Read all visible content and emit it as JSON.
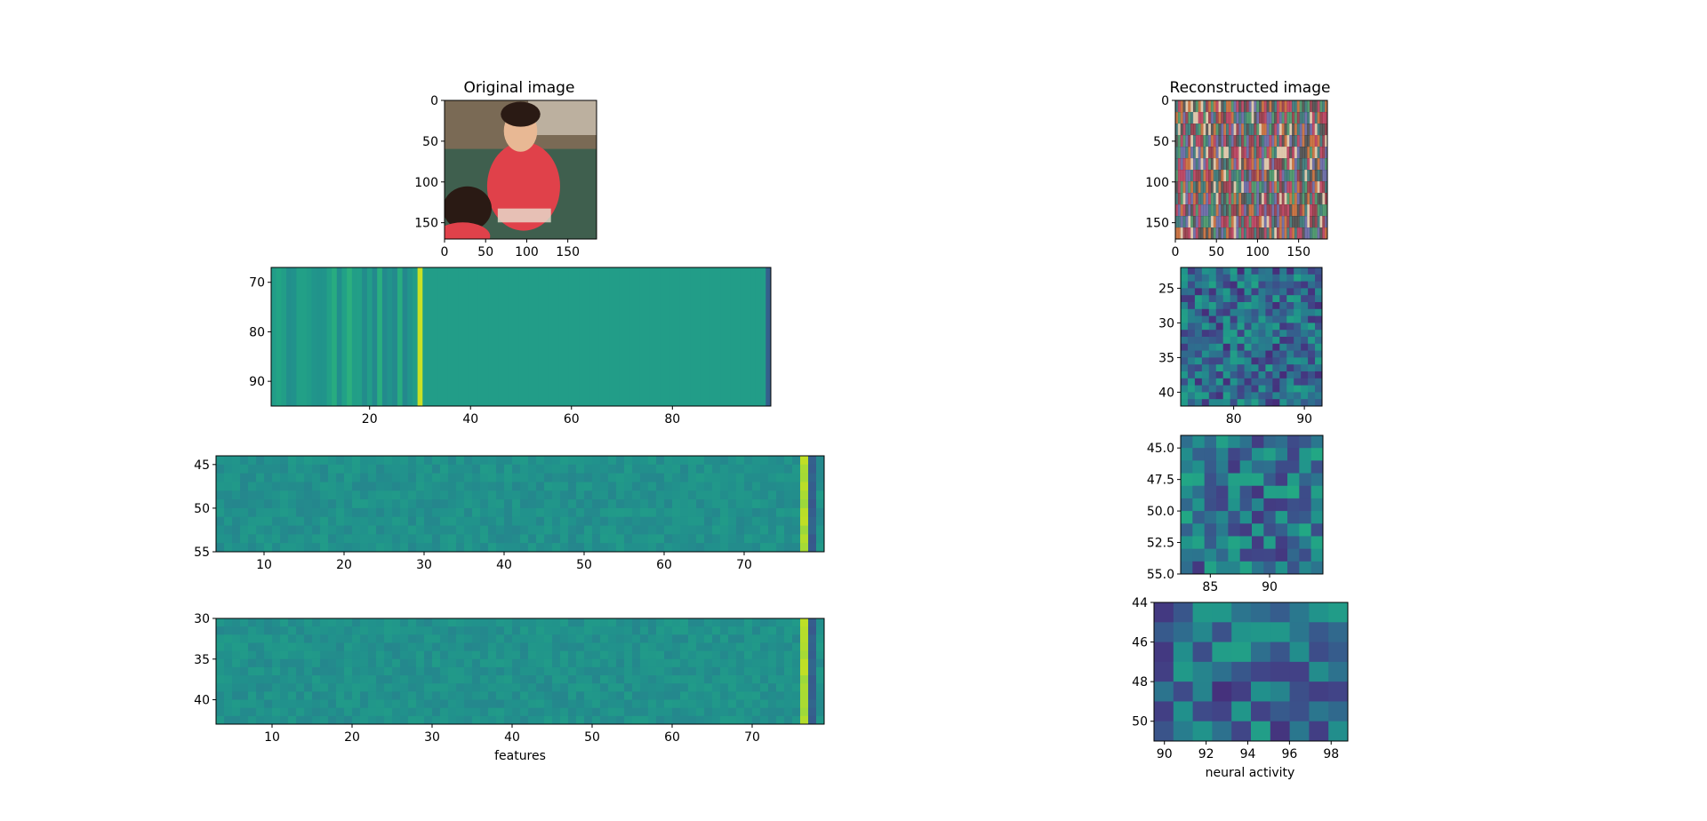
{
  "chart_data": [
    {
      "type": "image",
      "title": "Original image",
      "xlim": [
        0,
        185
      ],
      "ylim": [
        170,
        0
      ],
      "xticks": [
        0,
        50,
        100,
        150
      ],
      "yticks": [
        0,
        50,
        100,
        150
      ],
      "xticklabels": [
        "0",
        "50",
        "100",
        "150"
      ],
      "yticklabels": [
        "0",
        "50",
        "100",
        "150"
      ],
      "content": "photo",
      "palette": {
        "bg": "#7a6a55",
        "table": "#3f5f4e",
        "shirt": "#e0414a",
        "face": "#e8b894",
        "hair": "#2a1a14",
        "light": "#e8e0d0"
      }
    },
    {
      "type": "image",
      "title": "Reconstructed image",
      "xlim": [
        0,
        185
      ],
      "ylim": [
        170,
        0
      ],
      "xticks": [
        0,
        50,
        100,
        150
      ],
      "yticks": [
        0,
        50,
        100,
        150
      ],
      "xticklabels": [
        "0",
        "50",
        "100",
        "150"
      ],
      "yticklabels": [
        "0",
        "50",
        "100",
        "150"
      ],
      "content": "noise-stripes",
      "palette": {
        "stripes": [
          "#8a2a3a",
          "#3a8a5a",
          "#c0602a",
          "#5a5a9a",
          "#d8c0a0",
          "#2a6a6a",
          "#b03050",
          "#404040"
        ]
      }
    },
    {
      "type": "heatmap",
      "xlim": [
        0.5,
        99.5
      ],
      "ylim": [
        95,
        67
      ],
      "xticks": [
        20,
        40,
        60,
        80
      ],
      "yticks": [
        70,
        80,
        90
      ],
      "xticklabels": [
        "20",
        "40",
        "60",
        "80"
      ],
      "yticklabels": [
        "70",
        "80",
        "90"
      ],
      "cols": 99,
      "base": 0.55,
      "noise_end_col": 28,
      "special_cols": [
        {
          "col": 30,
          "value": 0.92
        },
        {
          "col": 99,
          "value": 0.3
        }
      ]
    },
    {
      "type": "heatmap",
      "xlim": [
        4,
        80
      ],
      "ylim": [
        55,
        44
      ],
      "xticks": [
        10,
        20,
        30,
        40,
        50,
        60,
        70
      ],
      "yticks": [
        45,
        50,
        55
      ],
      "xticklabels": [
        "10",
        "20",
        "30",
        "40",
        "50",
        "60",
        "70"
      ],
      "yticklabels": [
        "45",
        "50",
        "55"
      ],
      "cols": 76,
      "rows": 11,
      "base": 0.5,
      "special_cols": [
        {
          "col": 78,
          "value": 0.88
        },
        {
          "col": 79,
          "value": 0.3
        }
      ]
    },
    {
      "type": "heatmap",
      "xlim": [
        3,
        79
      ],
      "ylim": [
        43,
        30
      ],
      "xticks": [
        10,
        20,
        30,
        40,
        50,
        60,
        70
      ],
      "yticks": [
        30,
        35,
        40
      ],
      "xticklabels": [
        "10",
        "20",
        "30",
        "40",
        "50",
        "60",
        "70"
      ],
      "yticklabels": [
        "30",
        "35",
        "40"
      ],
      "xlabel": "features",
      "cols": 76,
      "rows": 13,
      "base": 0.5,
      "special_cols": [
        {
          "col": 77,
          "value": 0.88
        },
        {
          "col": 78,
          "value": 0.3
        }
      ]
    },
    {
      "type": "heatmap",
      "xlim": [
        72.5,
        92.5
      ],
      "ylim": [
        42,
        22
      ],
      "xticks": [
        80,
        90
      ],
      "yticks": [
        25,
        30,
        35,
        40
      ],
      "xticklabels": [
        "80",
        "90"
      ],
      "yticklabels": [
        "25",
        "30",
        "35",
        "40"
      ],
      "cols": 20,
      "rows": 20,
      "base": 0.35
    },
    {
      "type": "heatmap",
      "xlim": [
        82.5,
        94.5
      ],
      "ylim": [
        55,
        44
      ],
      "xticks": [
        85,
        90
      ],
      "yticks": [
        45.0,
        47.5,
        50.0,
        52.5,
        55.0
      ],
      "xticklabels": [
        "85",
        "90"
      ],
      "yticklabels": [
        "45.0",
        "47.5",
        "50.0",
        "52.5",
        "55.0"
      ],
      "cols": 12,
      "rows": 11,
      "base": 0.38
    },
    {
      "type": "heatmap",
      "xlim": [
        89.5,
        98.8
      ],
      "ylim": [
        51,
        44
      ],
      "xticks": [
        90,
        92,
        94,
        96,
        98
      ],
      "yticks": [
        44,
        46,
        48,
        50
      ],
      "xticklabels": [
        "90",
        "92",
        "94",
        "96",
        "98"
      ],
      "yticklabels": [
        "44",
        "46",
        "48",
        "50"
      ],
      "xlabel": "neural activity",
      "cols": 10,
      "rows": 7,
      "base": 0.35
    }
  ]
}
